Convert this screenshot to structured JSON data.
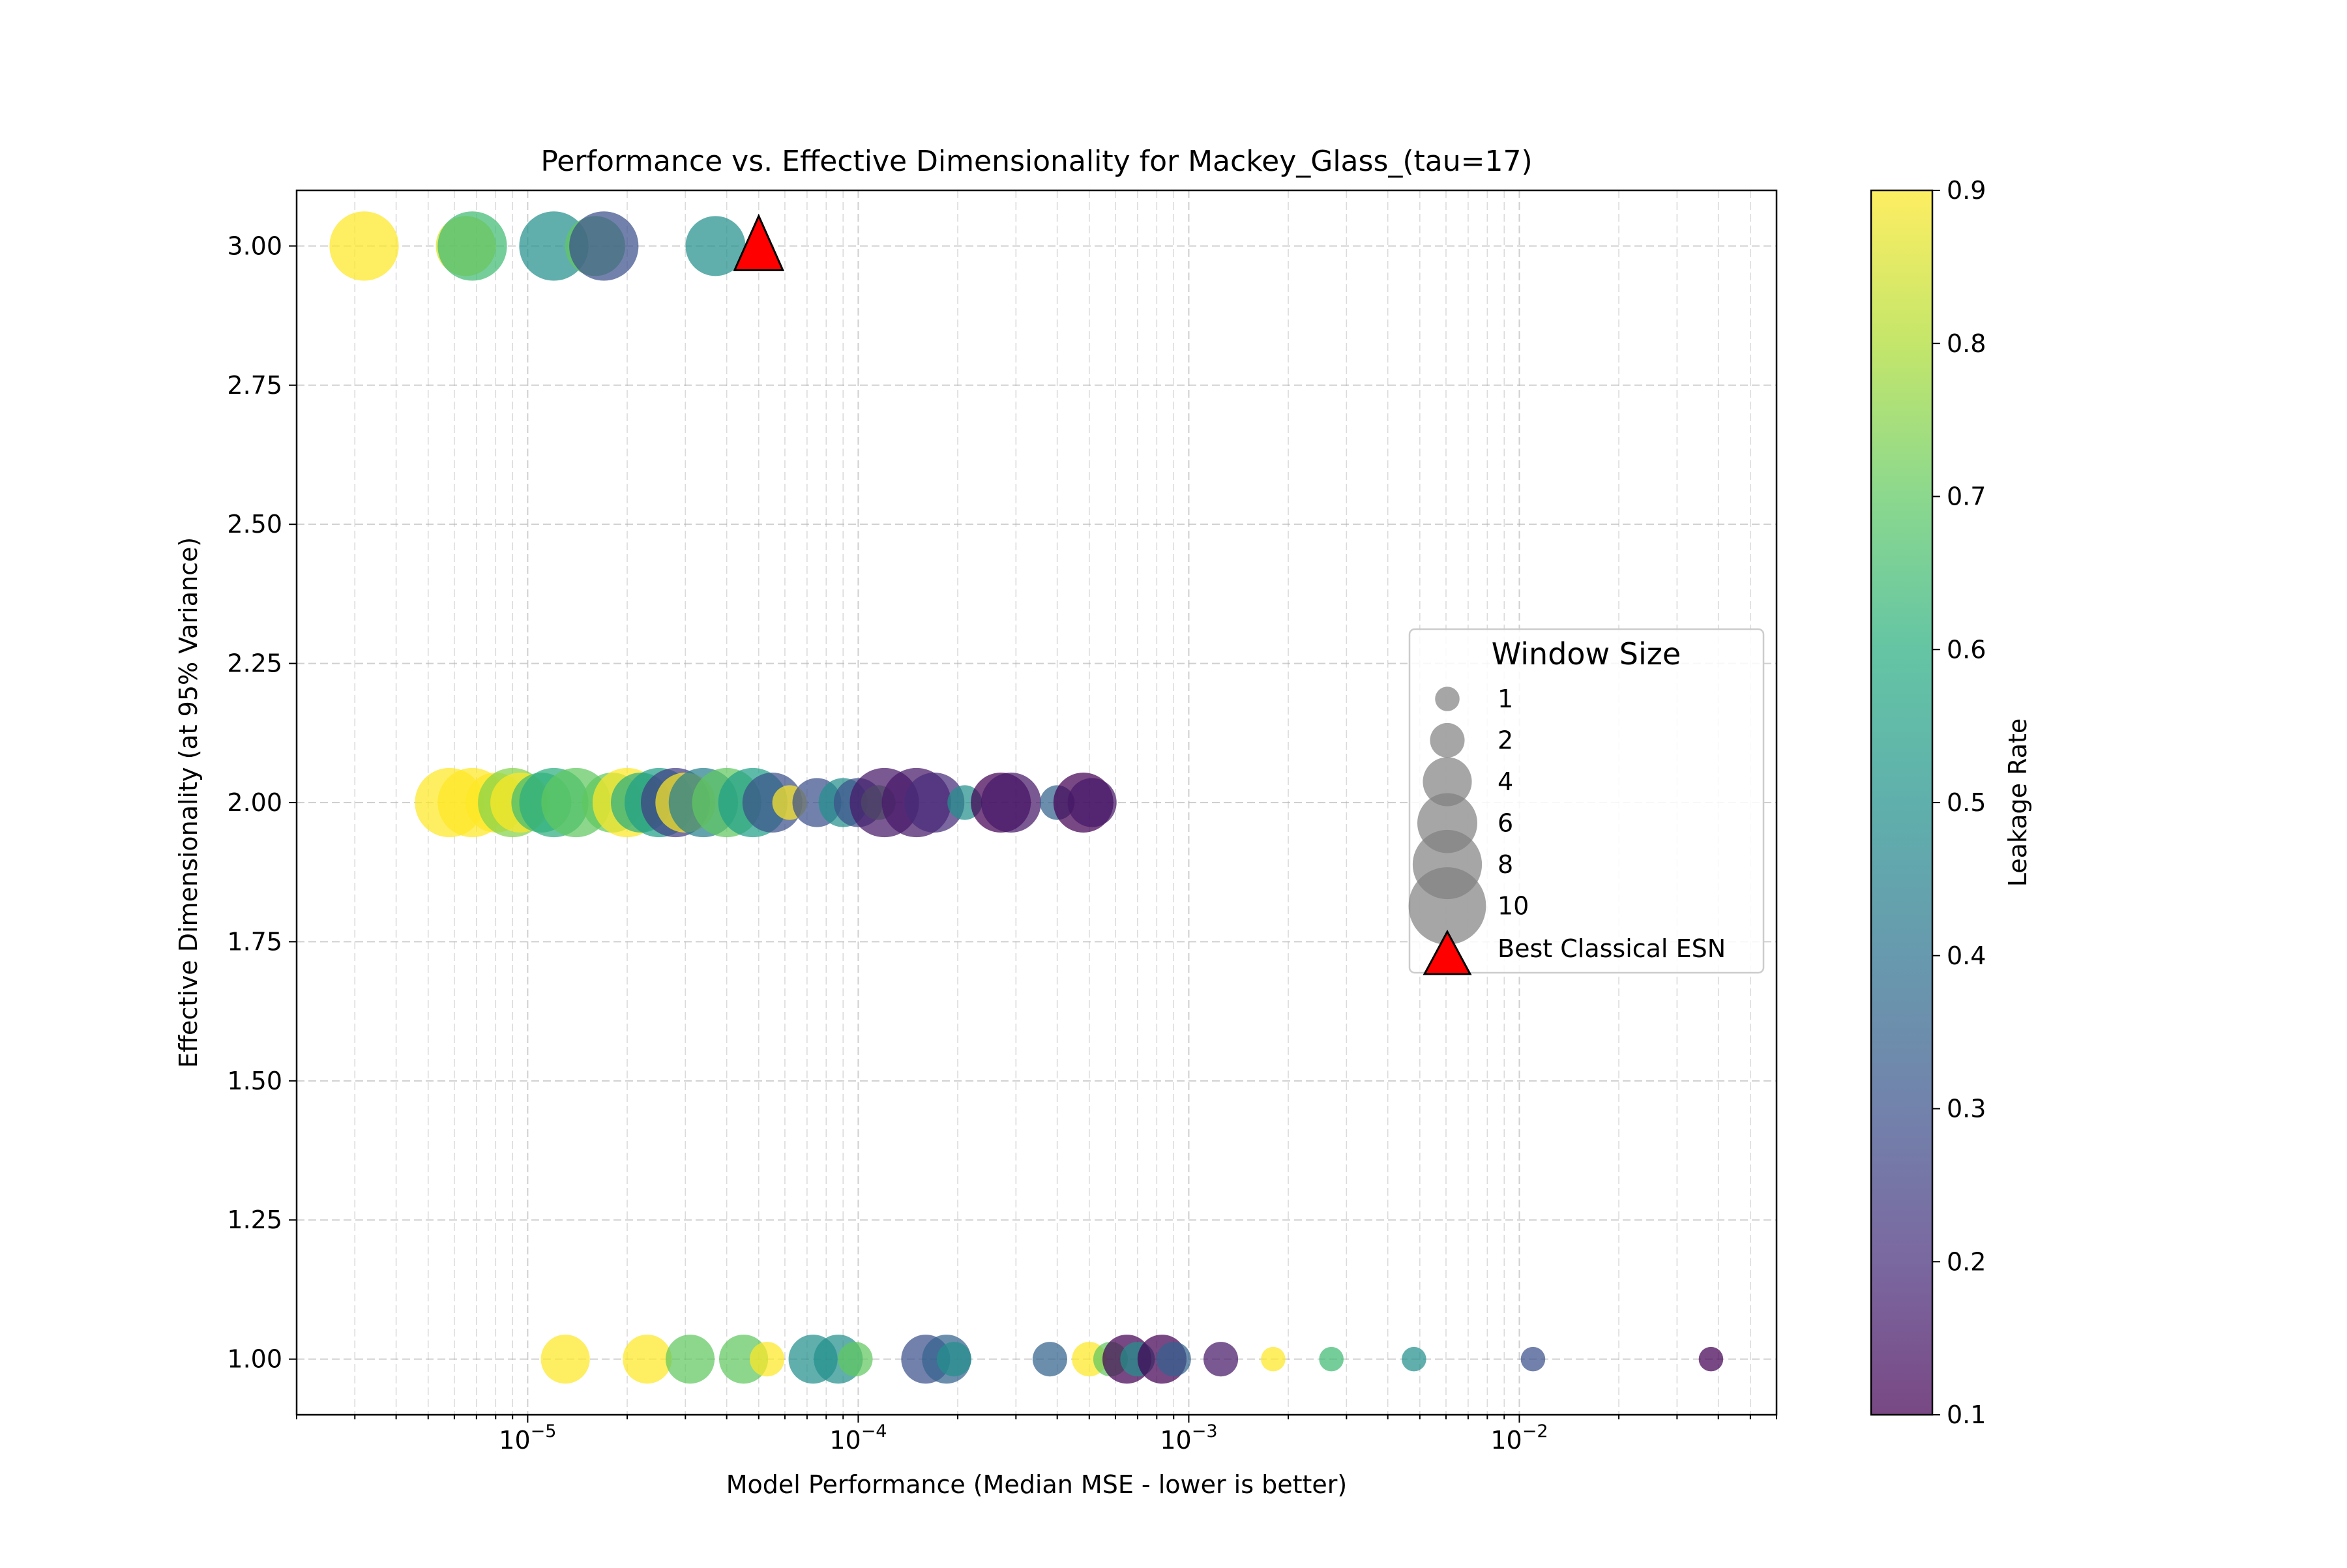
{
  "chart_data": {
    "type": "scatter",
    "title": "Performance vs. Effective Dimensionality for Mackey_Glass_(tau=17)",
    "xlabel": "Model Performance (Median MSE - lower is better)",
    "ylabel": "Effective Dimensionality (at 95% Variance)",
    "x_scale": "log",
    "xlim": [
      2e-06,
      0.06
    ],
    "ylim": [
      0.9,
      3.1
    ],
    "grid": true,
    "x_ticks": [
      {
        "value": 1e-05,
        "base": "10",
        "exp": "−5"
      },
      {
        "value": 0.0001,
        "base": "10",
        "exp": "−4"
      },
      {
        "value": 0.001,
        "base": "10",
        "exp": "−3"
      },
      {
        "value": 0.01,
        "base": "10",
        "exp": "−2"
      }
    ],
    "y_ticks": [
      {
        "value": 1.0,
        "label": "1.00"
      },
      {
        "value": 1.25,
        "label": "1.25"
      },
      {
        "value": 1.5,
        "label": "1.50"
      },
      {
        "value": 1.75,
        "label": "1.75"
      },
      {
        "value": 2.0,
        "label": "2.00"
      },
      {
        "value": 2.25,
        "label": "2.25"
      },
      {
        "value": 2.5,
        "label": "2.50"
      },
      {
        "value": 2.75,
        "label": "2.75"
      },
      {
        "value": 3.0,
        "label": "3.00"
      }
    ],
    "colorbar": {
      "label": "Leakage Rate",
      "range": [
        0.1,
        0.9
      ],
      "ticks": [
        {
          "value": 0.1,
          "label": "0.1"
        },
        {
          "value": 0.2,
          "label": "0.2"
        },
        {
          "value": 0.3,
          "label": "0.3"
        },
        {
          "value": 0.4,
          "label": "0.4"
        },
        {
          "value": 0.5,
          "label": "0.5"
        },
        {
          "value": 0.6,
          "label": "0.6"
        },
        {
          "value": 0.7,
          "label": "0.7"
        },
        {
          "value": 0.8,
          "label": "0.8"
        },
        {
          "value": 0.9,
          "label": "0.9"
        }
      ],
      "colormap": "viridis"
    },
    "legend": {
      "title": "Window Size",
      "placement": "center-right",
      "items": [
        {
          "label": "1",
          "window": 1
        },
        {
          "label": "2",
          "window": 2
        },
        {
          "label": "4",
          "window": 4
        },
        {
          "label": "6",
          "window": 6
        },
        {
          "label": "8",
          "window": 8
        },
        {
          "label": "10",
          "window": 10
        }
      ],
      "marker_label": "Best Classical ESN"
    },
    "best_classical_esn": {
      "x": 5e-05,
      "y": 3.0,
      "color": "#ff0000"
    },
    "points": [
      {
        "x": 3.2e-06,
        "y": 3.0,
        "leak": 0.9,
        "window": 8
      },
      {
        "x": 6.5e-06,
        "y": 3.0,
        "leak": 0.85,
        "window": 6
      },
      {
        "x": 6.8e-06,
        "y": 3.0,
        "leak": 0.65,
        "window": 8
      },
      {
        "x": 1.2e-05,
        "y": 3.0,
        "leak": 0.5,
        "window": 8
      },
      {
        "x": 1.6e-05,
        "y": 3.0,
        "leak": 0.7,
        "window": 6
      },
      {
        "x": 1.7e-05,
        "y": 3.0,
        "leak": 0.3,
        "window": 8
      },
      {
        "x": 3.7e-05,
        "y": 3.0,
        "leak": 0.5,
        "window": 6
      },
      {
        "x": 5.8e-06,
        "y": 2.0,
        "leak": 0.9,
        "window": 8
      },
      {
        "x": 6.8e-06,
        "y": 2.0,
        "leak": 0.9,
        "window": 8
      },
      {
        "x": 8e-06,
        "y": 2.0,
        "leak": 0.9,
        "window": 6
      },
      {
        "x": 9e-06,
        "y": 2.0,
        "leak": 0.75,
        "window": 8
      },
      {
        "x": 9.5e-06,
        "y": 2.0,
        "leak": 0.9,
        "window": 6
      },
      {
        "x": 1.1e-05,
        "y": 2.0,
        "leak": 0.65,
        "window": 6
      },
      {
        "x": 1.2e-05,
        "y": 2.0,
        "leak": 0.6,
        "window": 8
      },
      {
        "x": 1.4e-05,
        "y": 2.0,
        "leak": 0.7,
        "window": 8
      },
      {
        "x": 1.8e-05,
        "y": 2.0,
        "leak": 0.7,
        "window": 6
      },
      {
        "x": 2e-05,
        "y": 2.0,
        "leak": 0.9,
        "window": 8
      },
      {
        "x": 2.2e-05,
        "y": 2.0,
        "leak": 0.6,
        "window": 6
      },
      {
        "x": 2.5e-05,
        "y": 2.0,
        "leak": 0.55,
        "window": 8
      },
      {
        "x": 2.8e-05,
        "y": 2.0,
        "leak": 0.25,
        "window": 8
      },
      {
        "x": 3e-05,
        "y": 2.0,
        "leak": 0.9,
        "window": 6
      },
      {
        "x": 3.4e-05,
        "y": 2.0,
        "leak": 0.45,
        "window": 8
      },
      {
        "x": 4e-05,
        "y": 2.0,
        "leak": 0.7,
        "window": 8
      },
      {
        "x": 4.8e-05,
        "y": 2.0,
        "leak": 0.55,
        "window": 8
      },
      {
        "x": 5.5e-05,
        "y": 2.0,
        "leak": 0.3,
        "window": 6
      },
      {
        "x": 6.2e-05,
        "y": 2.0,
        "leak": 0.9,
        "window": 2
      },
      {
        "x": 7.5e-05,
        "y": 2.0,
        "leak": 0.3,
        "window": 4
      },
      {
        "x": 9e-05,
        "y": 2.0,
        "leak": 0.5,
        "window": 4
      },
      {
        "x": 0.0001,
        "y": 2.0,
        "leak": 0.3,
        "window": 4
      },
      {
        "x": 0.000115,
        "y": 2.0,
        "leak": 0.7,
        "window": 2
      },
      {
        "x": 0.00012,
        "y": 2.0,
        "leak": 0.15,
        "window": 8
      },
      {
        "x": 0.00015,
        "y": 2.0,
        "leak": 0.15,
        "window": 8
      },
      {
        "x": 0.00017,
        "y": 2.0,
        "leak": 0.2,
        "window": 6
      },
      {
        "x": 0.00021,
        "y": 2.0,
        "leak": 0.5,
        "window": 2
      },
      {
        "x": 0.00027,
        "y": 2.0,
        "leak": 0.1,
        "window": 6
      },
      {
        "x": 0.00029,
        "y": 2.0,
        "leak": 0.15,
        "window": 6
      },
      {
        "x": 0.0004,
        "y": 2.0,
        "leak": 0.35,
        "window": 2
      },
      {
        "x": 0.00048,
        "y": 2.0,
        "leak": 0.1,
        "window": 6
      },
      {
        "x": 0.00051,
        "y": 2.0,
        "leak": 0.15,
        "window": 4
      },
      {
        "x": 1.3e-05,
        "y": 1.0,
        "leak": 0.9,
        "window": 4
      },
      {
        "x": 2.3e-05,
        "y": 1.0,
        "leak": 0.9,
        "window": 4
      },
      {
        "x": 3.1e-05,
        "y": 1.0,
        "leak": 0.7,
        "window": 4
      },
      {
        "x": 4.5e-05,
        "y": 1.0,
        "leak": 0.7,
        "window": 4
      },
      {
        "x": 5.3e-05,
        "y": 1.0,
        "leak": 0.9,
        "window": 2
      },
      {
        "x": 7.3e-05,
        "y": 1.0,
        "leak": 0.5,
        "window": 4
      },
      {
        "x": 8.7e-05,
        "y": 1.0,
        "leak": 0.5,
        "window": 4
      },
      {
        "x": 9.8e-05,
        "y": 1.0,
        "leak": 0.7,
        "window": 2
      },
      {
        "x": 0.00016,
        "y": 1.0,
        "leak": 0.3,
        "window": 4
      },
      {
        "x": 0.000185,
        "y": 1.0,
        "leak": 0.35,
        "window": 4
      },
      {
        "x": 0.000195,
        "y": 1.0,
        "leak": 0.5,
        "window": 2
      },
      {
        "x": 0.00038,
        "y": 1.0,
        "leak": 0.35,
        "window": 2
      },
      {
        "x": 0.0005,
        "y": 1.0,
        "leak": 0.9,
        "window": 2
      },
      {
        "x": 0.00058,
        "y": 1.0,
        "leak": 0.7,
        "window": 2
      },
      {
        "x": 0.00065,
        "y": 1.0,
        "leak": 0.1,
        "window": 4
      },
      {
        "x": 0.0007,
        "y": 1.0,
        "leak": 0.5,
        "window": 2
      },
      {
        "x": 0.00083,
        "y": 1.0,
        "leak": 0.1,
        "window": 4
      },
      {
        "x": 0.0009,
        "y": 1.0,
        "leak": 0.35,
        "window": 2
      },
      {
        "x": 0.00125,
        "y": 1.0,
        "leak": 0.15,
        "window": 2
      },
      {
        "x": 0.0018,
        "y": 1.0,
        "leak": 0.9,
        "window": 1
      },
      {
        "x": 0.0027,
        "y": 1.0,
        "leak": 0.65,
        "window": 1
      },
      {
        "x": 0.0048,
        "y": 1.0,
        "leak": 0.5,
        "window": 1
      },
      {
        "x": 0.011,
        "y": 1.0,
        "leak": 0.3,
        "window": 1
      },
      {
        "x": 0.038,
        "y": 1.0,
        "leak": 0.1,
        "window": 1
      }
    ]
  }
}
